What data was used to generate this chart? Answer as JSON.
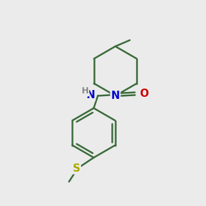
{
  "background_color": "#ebebeb",
  "bond_color": "#3a6b3a",
  "bond_width": 1.8,
  "atom_N_color": "#0000cc",
  "atom_O_color": "#cc0000",
  "atom_S_color": "#aaaa00",
  "atom_H_color": "#888888",
  "figsize": [
    3.0,
    3.0
  ],
  "dpi": 100,
  "xlim": [
    0,
    10
  ],
  "ylim": [
    0,
    10
  ]
}
